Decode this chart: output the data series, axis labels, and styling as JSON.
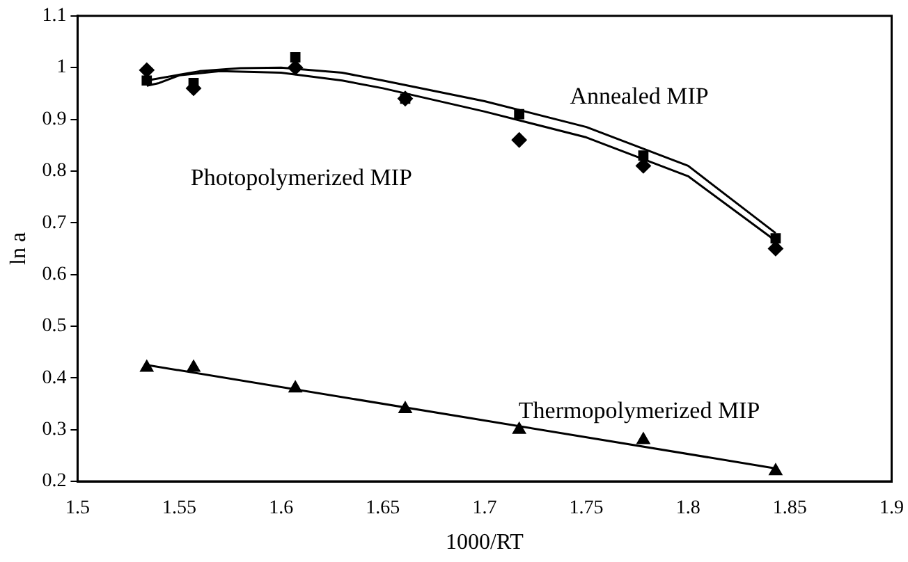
{
  "chart_data": {
    "type": "scatter",
    "xlabel": "1000/RT",
    "ylabel": "ln a",
    "xlim": [
      1.5,
      1.9
    ],
    "xticks": [
      1.5,
      1.55,
      1.6,
      1.65,
      1.7,
      1.75,
      1.8,
      1.85,
      1.9
    ],
    "ylim": [
      0.2,
      1.1
    ],
    "yticks": [
      0.2,
      0.3,
      0.4,
      0.5,
      0.6,
      0.7,
      0.8,
      0.9,
      1,
      1.1
    ],
    "grid": false,
    "legend": false,
    "series": [
      {
        "marker": "square",
        "color": "#000000",
        "x": [
          1.534,
          1.557,
          1.607,
          1.661,
          1.717,
          1.778,
          1.843
        ],
        "values": [
          0.975,
          0.97,
          1.02,
          0.94,
          0.91,
          0.83,
          0.67
        ]
      },
      {
        "marker": "diamond",
        "color": "#000000",
        "x": [
          1.534,
          1.557,
          1.607,
          1.661,
          1.717,
          1.778,
          1.843
        ],
        "values": [
          0.995,
          0.96,
          1.0,
          0.94,
          0.86,
          0.81,
          0.65
        ]
      },
      {
        "marker": "triangle",
        "color": "#000000",
        "x": [
          1.534,
          1.557,
          1.607,
          1.661,
          1.717,
          1.778,
          1.843
        ],
        "values": [
          0.42,
          0.42,
          0.38,
          0.34,
          0.3,
          0.28,
          0.22
        ]
      },
      {
        "type": "line",
        "marker": "none",
        "color": "#000000",
        "x": [
          1.534,
          1.56,
          1.58,
          1.6,
          1.63,
          1.65,
          1.7,
          1.75,
          1.8,
          1.843
        ],
        "values": [
          0.975,
          0.993,
          0.999,
          1.0,
          0.99,
          0.975,
          0.935,
          0.885,
          0.81,
          0.68
        ]
      },
      {
        "type": "line",
        "marker": "none",
        "color": "#000000",
        "x": [
          1.534,
          1.54,
          1.55,
          1.57,
          1.6,
          1.63,
          1.65,
          1.7,
          1.75,
          1.8,
          1.843
        ],
        "values": [
          0.965,
          0.97,
          0.985,
          0.993,
          0.99,
          0.975,
          0.96,
          0.915,
          0.865,
          0.79,
          0.665
        ]
      },
      {
        "type": "line",
        "marker": "none",
        "color": "#000000",
        "x": [
          1.534,
          1.843
        ],
        "values": [
          0.425,
          0.225
        ]
      }
    ],
    "annotations": [
      "Annealed MIP",
      "Photopolymerized MIP",
      "Thermopolymerized MIP"
    ]
  }
}
